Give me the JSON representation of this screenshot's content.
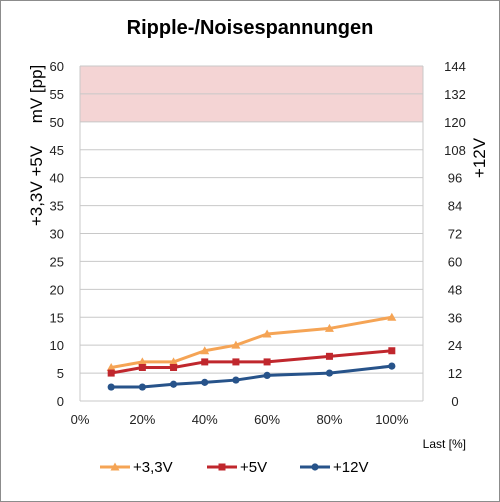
{
  "chart_data": {
    "type": "line",
    "title": "Ripple-/Noisespannungen",
    "xlabel": "Last [%]",
    "ylabel_left_top": "mV [pp]",
    "ylabel_left_bottom": "+3,3V +5V",
    "ylabel_right": "+12V",
    "x_ticks": [
      "0%",
      "20%",
      "40%",
      "60%",
      "80%",
      "100%"
    ],
    "xlim": [
      0,
      110
    ],
    "ylim_left": [
      0,
      60
    ],
    "ylim_right": [
      0,
      144
    ],
    "y_ticks_left": [
      "0",
      "5",
      "10",
      "15",
      "20",
      "25",
      "30",
      "35",
      "40",
      "45",
      "50",
      "55",
      "60"
    ],
    "y_ticks_right": [
      "0",
      "12",
      "24",
      "36",
      "48",
      "60",
      "72",
      "84",
      "96",
      "108",
      "120",
      "132",
      "144"
    ],
    "limit_band": {
      "from": 50,
      "to": 60,
      "color": "#f4d4d4",
      "axis": "left"
    },
    "grid": true,
    "legend_position": "bottom",
    "series": [
      {
        "name": "+3,3V",
        "axis": "left",
        "color": "#f5a455",
        "marker": "triangle",
        "x": [
          10,
          20,
          30,
          40,
          50,
          60,
          80,
          100
        ],
        "y": [
          6,
          7,
          7,
          9,
          10,
          12,
          13,
          15
        ]
      },
      {
        "name": "+5V",
        "axis": "left",
        "color": "#c0272d",
        "marker": "square",
        "x": [
          10,
          20,
          30,
          40,
          50,
          60,
          80,
          100
        ],
        "y": [
          5,
          6,
          6,
          7,
          7,
          7,
          8,
          9
        ]
      },
      {
        "name": "+12V",
        "axis": "right",
        "color": "#27538a",
        "marker": "circle",
        "x": [
          10,
          20,
          30,
          40,
          50,
          60,
          80,
          100
        ],
        "y": [
          6,
          6,
          7.2,
          8,
          9,
          11,
          12,
          15
        ]
      }
    ]
  }
}
